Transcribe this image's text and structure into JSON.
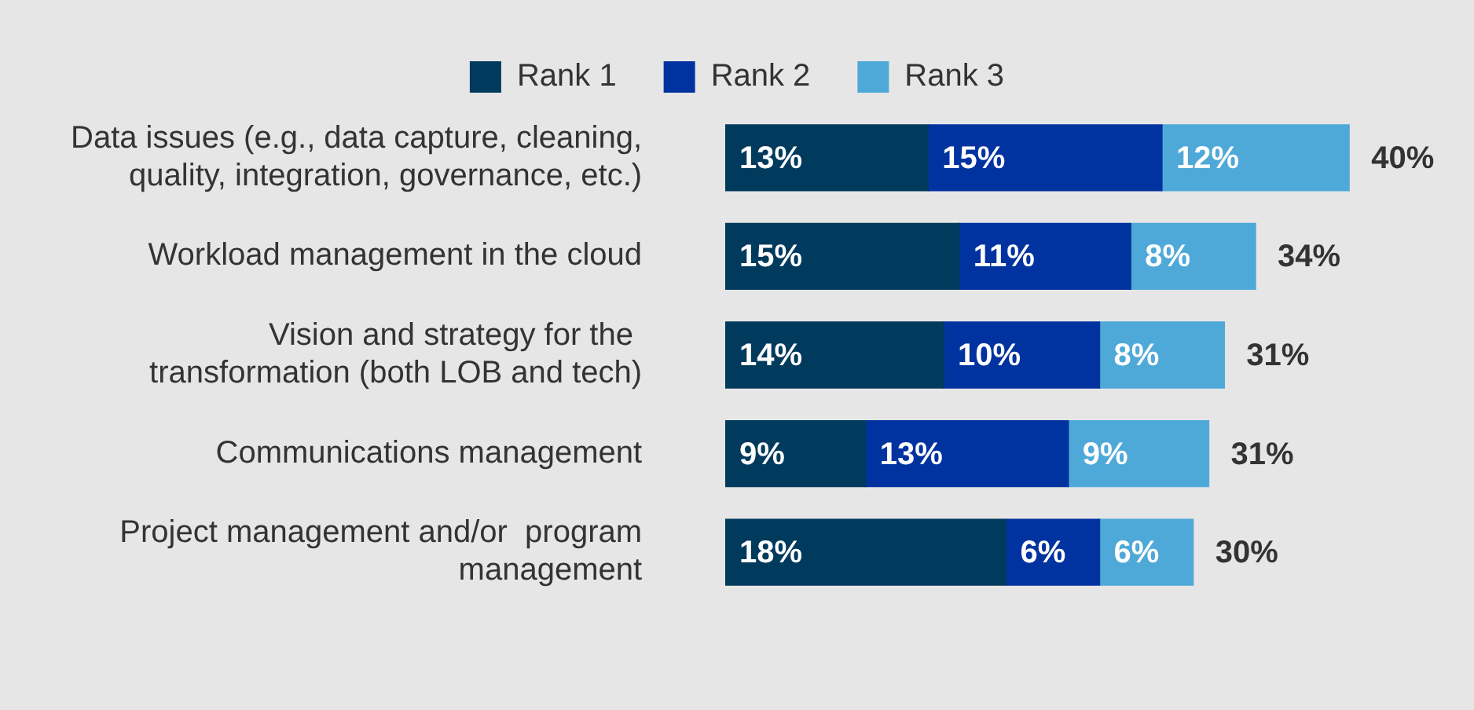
{
  "chart_data": {
    "type": "bar",
    "orientation": "horizontal",
    "stacked": true,
    "legend": "top",
    "categories": [
      "Data issues (e.g., data capture, cleaning, quality, integration, governance, etc.)",
      "Workload management in the cloud",
      "Vision and strategy for the  transformation (both LOB and tech)",
      "Communications management",
      "Project management and/or  program management"
    ],
    "series": [
      {
        "name": "Rank 1",
        "color": "#003a5d",
        "values": [
          13,
          15,
          14,
          9,
          18
        ],
        "value_labels": [
          "13%",
          "15%",
          "14%",
          "9%",
          "18%"
        ]
      },
      {
        "name": "Rank 2",
        "color": "#0033a0",
        "values": [
          15,
          11,
          10,
          13,
          6
        ],
        "value_labels": [
          "15%",
          "11%",
          "10%",
          "13%",
          "6%"
        ]
      },
      {
        "name": "Rank 3",
        "color": "#4fa9d8",
        "values": [
          12,
          8,
          8,
          9,
          6
        ],
        "value_labels": [
          "12%",
          "8%",
          "8%",
          "9%",
          "6%"
        ]
      }
    ],
    "totals": [
      "40%",
      "34%",
      "31%",
      "31%",
      "30%"
    ]
  }
}
